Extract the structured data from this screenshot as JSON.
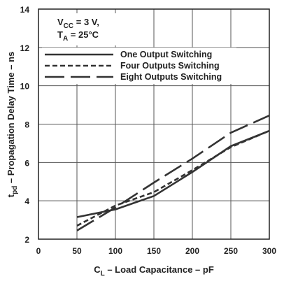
{
  "chart_data": {
    "type": "line",
    "xlabel_main": "C",
    "xlabel_sub": "L",
    "xlabel_rest": " – Load Capacitance – pF",
    "ylabel_main": "t",
    "ylabel_sub": "pd",
    "ylabel_rest": " – Propagation Delay Time – ns",
    "xlim": [
      0,
      300
    ],
    "ylim": [
      2,
      14
    ],
    "xticks": [
      "0",
      "50",
      "100",
      "150",
      "200",
      "250",
      "300"
    ],
    "yticks": [
      "2",
      "4",
      "6",
      "8",
      "10",
      "12",
      "14"
    ],
    "grid": true,
    "legend_position": "top-left",
    "conditions": {
      "vcc_main": "V",
      "vcc_sub": "CC",
      "vcc_rest": " = 3 V,",
      "ta_main": "T",
      "ta_sub": "A",
      "ta_rest": " = 25°C"
    },
    "series": [
      {
        "name": "One Output Switching",
        "style": "solid",
        "x": [
          50,
          100,
          150,
          200,
          250,
          300
        ],
        "y": [
          3.15,
          3.55,
          4.25,
          5.5,
          6.85,
          7.65
        ]
      },
      {
        "name": "Four Outputs Switching",
        "style": "short-dash",
        "x": [
          50,
          100,
          150,
          200,
          250,
          300
        ],
        "y": [
          2.7,
          3.75,
          4.45,
          5.6,
          6.8,
          7.65
        ]
      },
      {
        "name": "Eight Outputs Switching",
        "style": "long-dash",
        "x": [
          50,
          100,
          150,
          200,
          250,
          300
        ],
        "y": [
          2.45,
          3.65,
          4.95,
          6.2,
          7.55,
          8.45
        ]
      }
    ]
  }
}
